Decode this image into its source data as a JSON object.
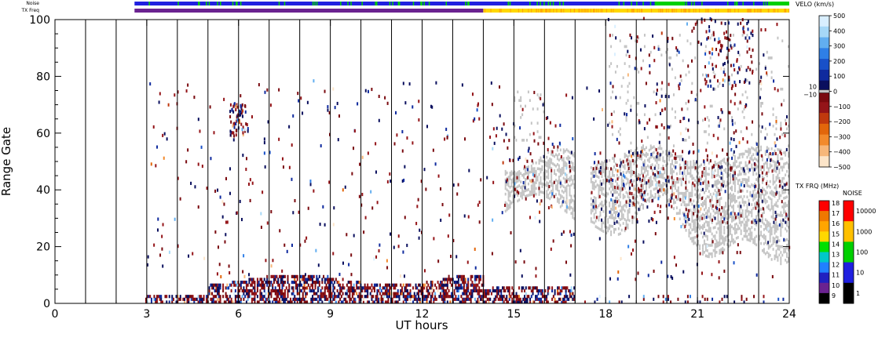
{
  "chart_data": {
    "type": "heatmap",
    "xlabel": "UT hours",
    "ylabel": "Range Gate",
    "xlim": [
      0,
      24
    ],
    "ylim": [
      0,
      100
    ],
    "x_ticks": [
      "0",
      "3",
      "6",
      "9",
      "12",
      "15",
      "18",
      "21",
      "24"
    ],
    "y_ticks": [
      "0",
      "20",
      "40",
      "60",
      "80",
      "100"
    ],
    "scan_boundaries_ut": [
      1,
      2,
      3,
      4,
      5,
      6,
      7,
      8,
      9,
      10,
      11,
      12,
      13,
      14,
      15,
      16,
      17,
      18,
      19,
      20,
      21,
      22,
      23
    ],
    "top_bars": {
      "noise_label": "Noise",
      "txfreq_label": "TX Freq"
    },
    "velocity_scale": {
      "title": "VELO (km/s)",
      "ticks": [
        "500",
        "400",
        "300",
        "200",
        "100",
        "0",
        "−100",
        "−200",
        "−300",
        "−400",
        "−500"
      ],
      "ground_scatter_labels": [
        "10",
        "−10"
      ],
      "colors": [
        "#fde5c9",
        "#f7b77a",
        "#f28a2c",
        "#e2660b",
        "#c0390e",
        "#941418",
        "#7a0a0f",
        "#0a0f5e",
        "#0f2a9e",
        "#1850c8",
        "#2f7fe6",
        "#62aef0",
        "#a6d8f7",
        "#d9efff"
      ]
    },
    "txfreq_scale": {
      "title": "TX FRQ (MHz)",
      "ticks": [
        "18",
        "17",
        "16",
        "15",
        "14",
        "13",
        "12",
        "11",
        "10",
        "9"
      ],
      "colors": [
        "#ff0000",
        "#f07800",
        "#ffa500",
        "#ffd800",
        "#00e000",
        "#00c8c8",
        "#2080ff",
        "#2020c0",
        "#6a2290",
        "#000000"
      ]
    },
    "noise_scale": {
      "title": "NOISE",
      "ticks": [
        "10000",
        "1000",
        "100",
        "10",
        "1"
      ],
      "colors": [
        "#ff0000",
        "#ffc000",
        "#00d000",
        "#2020e0",
        "#000000"
      ]
    }
  }
}
